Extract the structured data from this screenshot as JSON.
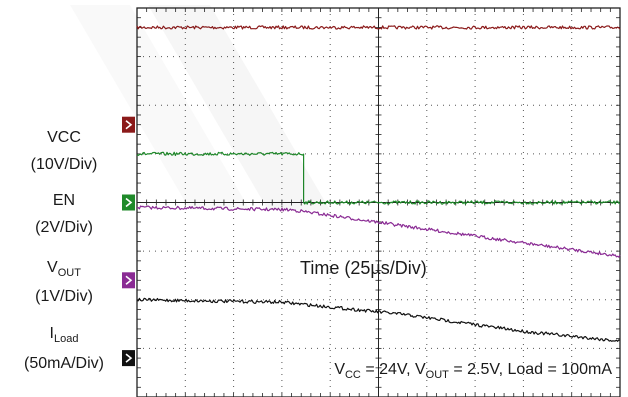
{
  "chart_data": {
    "type": "line",
    "title": "",
    "x_label": "Time (25µs/Div)",
    "x_divisions": 10,
    "y_divisions": 8,
    "x_range_div": [
      0,
      10
    ],
    "grid": true,
    "annotation": {
      "parts": [
        "V",
        "CC",
        " = 24V, V",
        "OUT",
        " = 2.5V, Load = 100mA"
      ]
    },
    "channels": [
      {
        "id": "vcc",
        "name": "VCC",
        "sub": "",
        "scale": "(10V/Div)",
        "color": "#8b1a1a",
        "marker_div": 5.6,
        "points": [
          [
            0,
            7.6
          ],
          [
            10,
            7.6
          ]
        ]
      },
      {
        "id": "en",
        "name": "EN",
        "sub": "",
        "scale": "(2V/Div)",
        "color": "#1f8a2a",
        "marker_div": 4.0,
        "points": [
          [
            0,
            5.0
          ],
          [
            3.45,
            5.0
          ],
          [
            3.45,
            4.0
          ],
          [
            10,
            4.0
          ]
        ]
      },
      {
        "id": "vout",
        "name": "V",
        "sub": "OUT",
        "scale": "(1V/Div)",
        "color": "#8a2b94",
        "marker_div": 2.4,
        "points": [
          [
            0,
            3.9
          ],
          [
            3.2,
            3.85
          ],
          [
            6.0,
            3.45
          ],
          [
            8.5,
            3.1
          ],
          [
            10,
            2.9
          ]
        ]
      },
      {
        "id": "iload",
        "name": "I",
        "sub": "Load",
        "scale": "(50mA/Div)",
        "color": "#111111",
        "marker_div": 0.8,
        "points": [
          [
            0,
            2.0
          ],
          [
            3.0,
            1.95
          ],
          [
            5.5,
            1.7
          ],
          [
            8.0,
            1.35
          ],
          [
            10,
            1.15
          ]
        ]
      }
    ]
  }
}
